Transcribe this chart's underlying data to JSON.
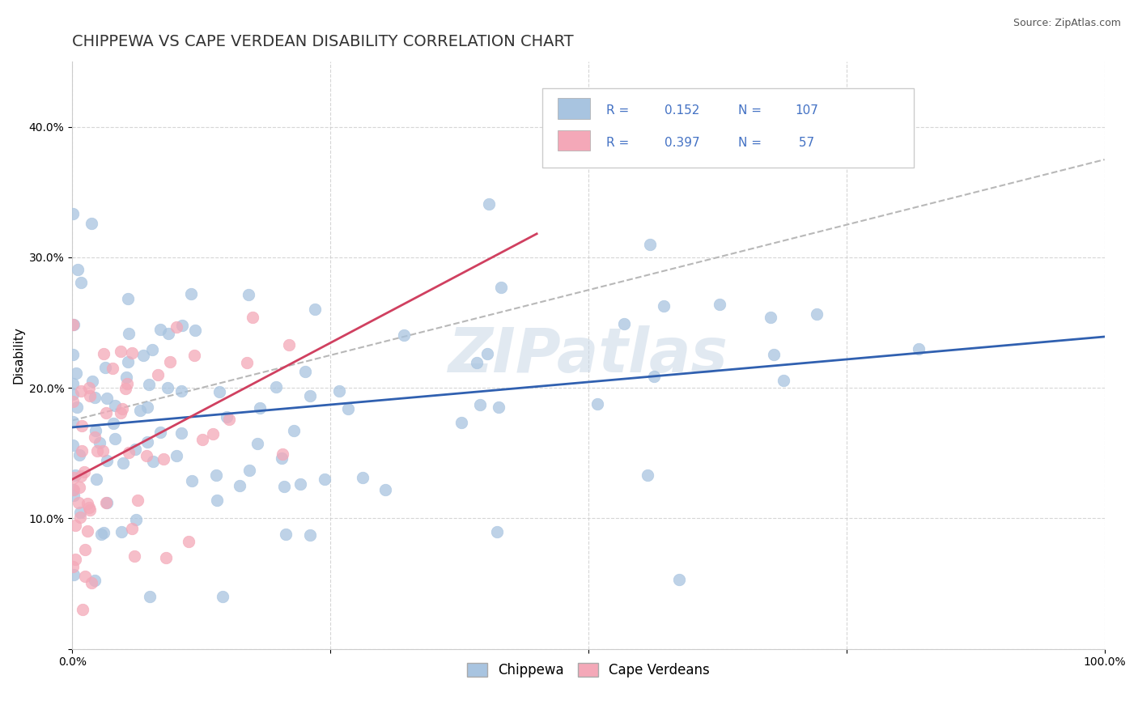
{
  "title": "CHIPPEWA VS CAPE VERDEAN DISABILITY CORRELATION CHART",
  "source": "Source: ZipAtlas.com",
  "ylabel": "Disability",
  "xlim": [
    0.0,
    1.0
  ],
  "ylim": [
    0.0,
    0.45
  ],
  "xticks": [
    0.0,
    0.25,
    0.5,
    0.75,
    1.0
  ],
  "xticklabels": [
    "0.0%",
    "",
    "",
    "",
    "100.0%"
  ],
  "yticks": [
    0.0,
    0.1,
    0.2,
    0.3,
    0.4
  ],
  "yticklabels": [
    "",
    "10.0%",
    "20.0%",
    "30.0%",
    "40.0%"
  ],
  "chippewa_R": 0.152,
  "chippewa_N": 107,
  "capeverdean_R": 0.397,
  "capeverdean_N": 57,
  "chippewa_color": "#a8c4e0",
  "capeverdean_color": "#f4a8b8",
  "trend_chippewa_color": "#3060b0",
  "trend_capeverdean_color": "#d04060",
  "trend_dashed_color": "#b8b8b8",
  "watermark": "ZIPatlas",
  "background_color": "#ffffff",
  "grid_color": "#cccccc",
  "title_color": "#333333",
  "legend_text_color": "#4472c4",
  "title_fontsize": 14,
  "axis_fontsize": 11,
  "tick_fontsize": 10,
  "legend_fontsize": 12,
  "source_fontsize": 9
}
